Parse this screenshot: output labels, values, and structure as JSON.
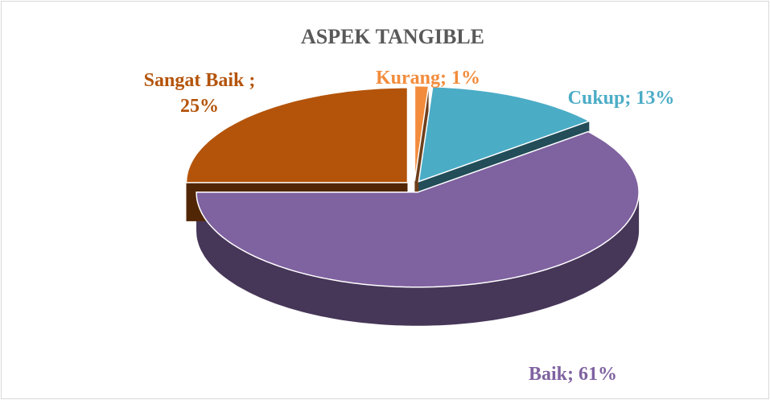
{
  "chart_data": {
    "type": "pie",
    "title": "ASPEK TANGIBLE",
    "values": [
      1,
      13,
      61,
      25
    ],
    "value_labels": [
      "Kurang; 1%",
      "Cukup; 13%",
      "Baik; 61%",
      "Sangat Baik ;\n25%"
    ],
    "colors": [
      "#f28c3c",
      "#4bacc6",
      "#7f62a0",
      "#b4540a"
    ],
    "three_d": true
  }
}
